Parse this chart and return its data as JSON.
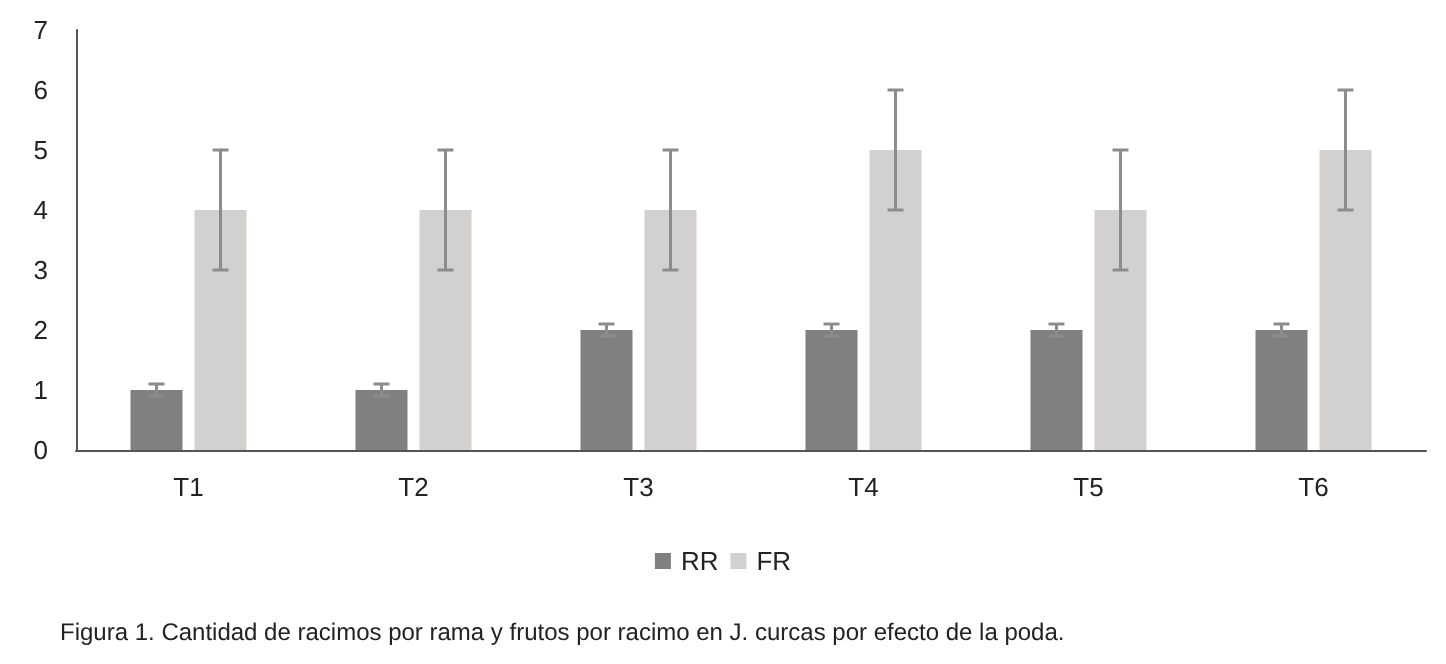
{
  "chart_data": {
    "type": "bar",
    "categories": [
      "T1",
      "T2",
      "T3",
      "T4",
      "T5",
      "T6"
    ],
    "series": [
      {
        "name": "RR",
        "color": "#7f807f",
        "values": [
          1,
          1,
          2,
          2,
          2,
          2
        ],
        "errors": [
          0.1,
          0.1,
          0.1,
          0.1,
          0.1,
          0.1
        ]
      },
      {
        "name": "FR",
        "color": "#d2d1d0",
        "values": [
          4,
          4,
          4,
          5,
          4,
          5
        ],
        "errors": [
          1,
          1,
          1,
          1,
          1,
          1
        ]
      }
    ],
    "ylim": [
      0,
      7
    ],
    "yticks": [
      0,
      1,
      2,
      3,
      4,
      5,
      6,
      7
    ],
    "grid": false,
    "legend": "bottom",
    "annotations": [
      "Figura 1. Cantidad de racimos por rama y frutos por racimo en J. curcas por efecto de la poda."
    ]
  }
}
